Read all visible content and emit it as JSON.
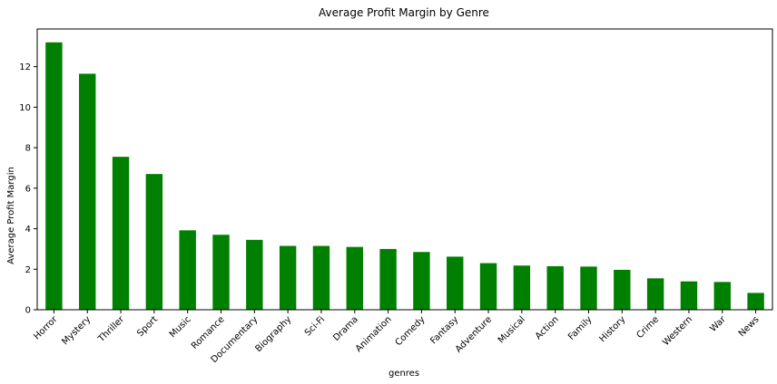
{
  "chart_data": {
    "type": "bar",
    "title": "Average Profit Margin by Genre",
    "xlabel": "genres",
    "ylabel": "Average Profit Margin",
    "categories": [
      "Horror",
      "Mystery",
      "Thriller",
      "Sport",
      "Music",
      "Romance",
      "Documentary",
      "Biography",
      "Sci-Fi",
      "Drama",
      "Animation",
      "Comedy",
      "Fantasy",
      "Adventure",
      "Musical",
      "Action",
      "Family",
      "History",
      "Crime",
      "Western",
      "War",
      "News"
    ],
    "values": [
      13.2,
      11.65,
      7.55,
      6.7,
      3.92,
      3.7,
      3.45,
      3.15,
      3.15,
      3.1,
      3.0,
      2.85,
      2.62,
      2.3,
      2.18,
      2.15,
      2.13,
      1.97,
      1.55,
      1.4,
      1.37,
      0.83
    ],
    "ylim": [
      0,
      13.86
    ],
    "yticks": [
      0,
      2,
      4,
      6,
      8,
      10,
      12
    ],
    "bar_color": "#008000",
    "grid": false,
    "legend": "none"
  }
}
